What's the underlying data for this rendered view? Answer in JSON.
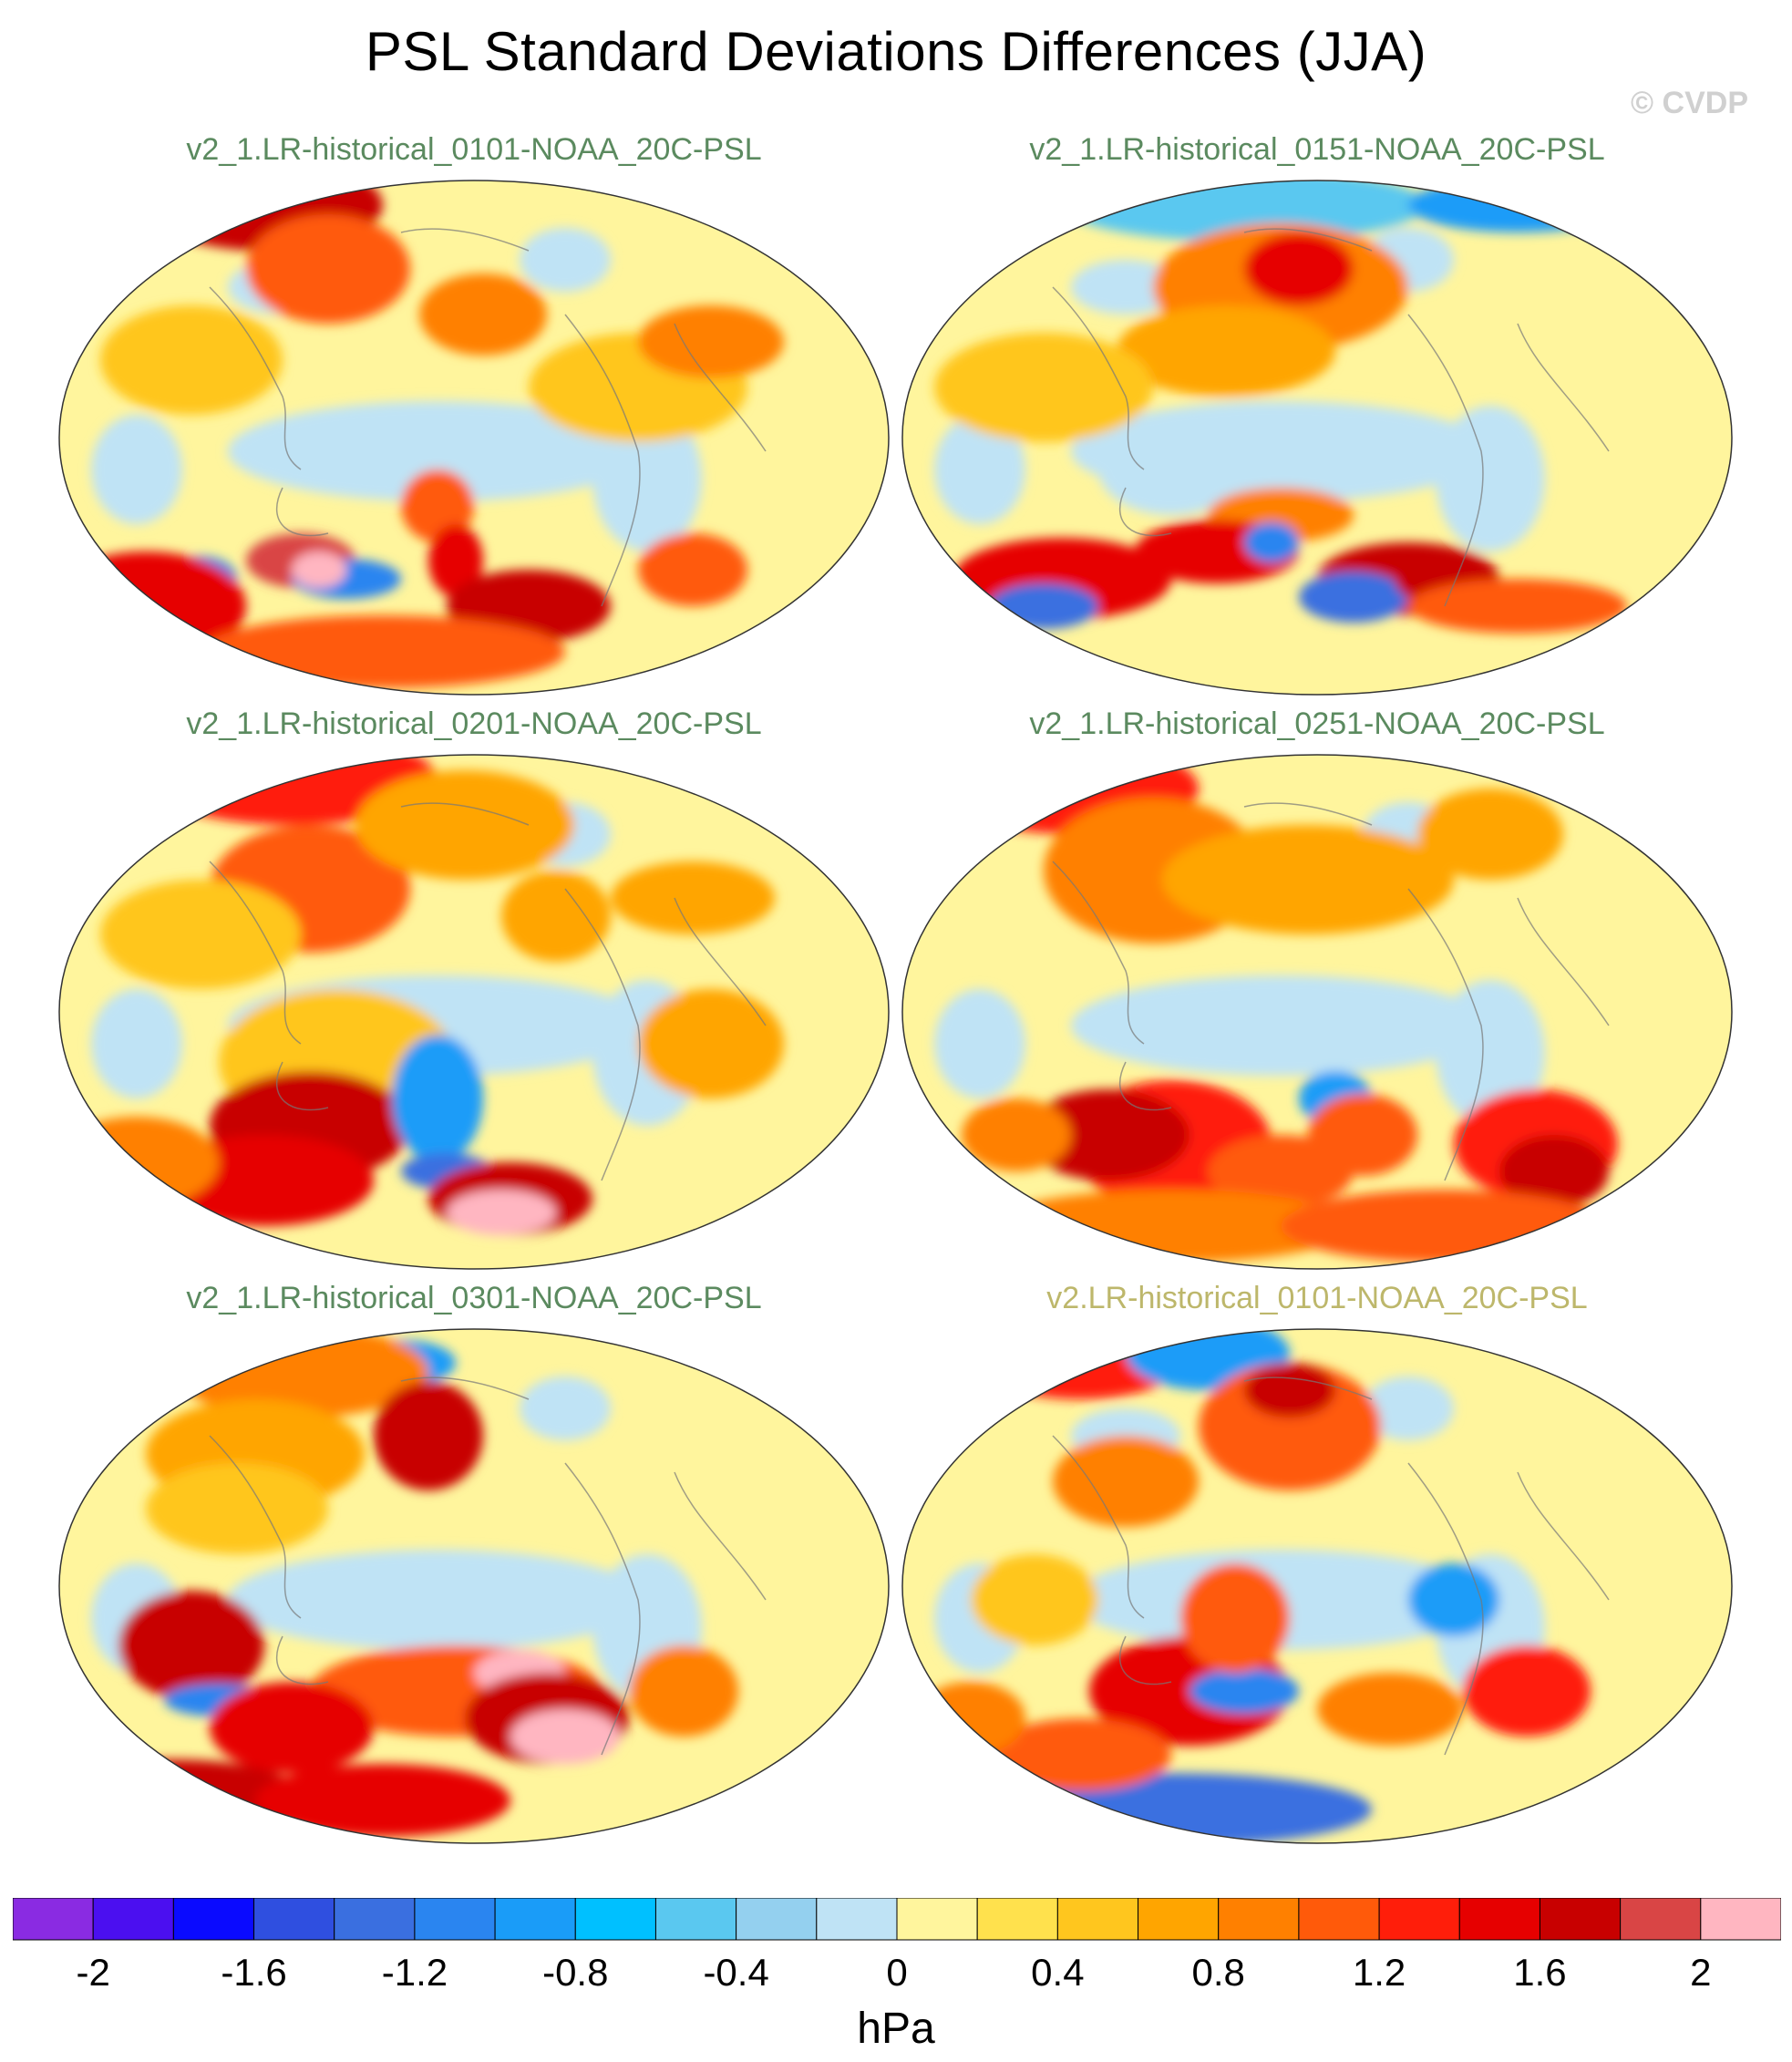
{
  "header": {
    "title": "PSL Standard Deviations Differences (JJA)",
    "copyright": "© CVDP"
  },
  "panels": [
    {
      "title": "v2_1.LR-historical_0101-NOAA_20C-PSL",
      "title_color": "#5b8a5f"
    },
    {
      "title": "v2_1.LR-historical_0151-NOAA_20C-PSL",
      "title_color": "#5b8a5f"
    },
    {
      "title": "v2_1.LR-historical_0201-NOAA_20C-PSL",
      "title_color": "#5b8a5f"
    },
    {
      "title": "v2_1.LR-historical_0251-NOAA_20C-PSL",
      "title_color": "#5b8a5f"
    },
    {
      "title": "v2_1.LR-historical_0301-NOAA_20C-PSL",
      "title_color": "#5b8a5f"
    },
    {
      "title": "v2.LR-historical_0101-NOAA_20C-PSL",
      "title_color": "#bdb76b"
    }
  ],
  "colorbar": {
    "units": "hPa",
    "tick_labels": [
      "-2",
      "-1.6",
      "-1.2",
      "-0.8",
      "-0.4",
      "0",
      "0.4",
      "0.8",
      "1.2",
      "1.6",
      "2"
    ],
    "colors": [
      "#8a2be2",
      "#4b0ff0",
      "#0a0aff",
      "#2f4fe0",
      "#3a6fe0",
      "#2a85f0",
      "#1a9cf8",
      "#00c0ff",
      "#5ac8f0",
      "#94d0ef",
      "#bfe3f5",
      "#fff59d",
      "#ffe14d",
      "#ffc61e",
      "#ffa500",
      "#ff8000",
      "#ff5a0a",
      "#ff1e0a",
      "#e60000",
      "#c80000",
      "#d94545",
      "#ffb6c1"
    ]
  },
  "chart_data": {
    "type": "heatmap",
    "title": "PSL Standard Deviations Differences (JJA)",
    "units": "hPa",
    "scale_range": [
      -2,
      2
    ],
    "scale_step": 0.2,
    "panels": [
      "v2_1.LR-historical_0101-NOAA_20C-PSL",
      "v2_1.LR-historical_0151-NOAA_20C-PSL",
      "v2_1.LR-historical_0201-NOAA_20C-PSL",
      "v2_1.LR-historical_0251-NOAA_20C-PSL",
      "v2_1.LR-historical_0301-NOAA_20C-PSL",
      "v2.LR-historical_0101-NOAA_20C-PSL"
    ]
  }
}
